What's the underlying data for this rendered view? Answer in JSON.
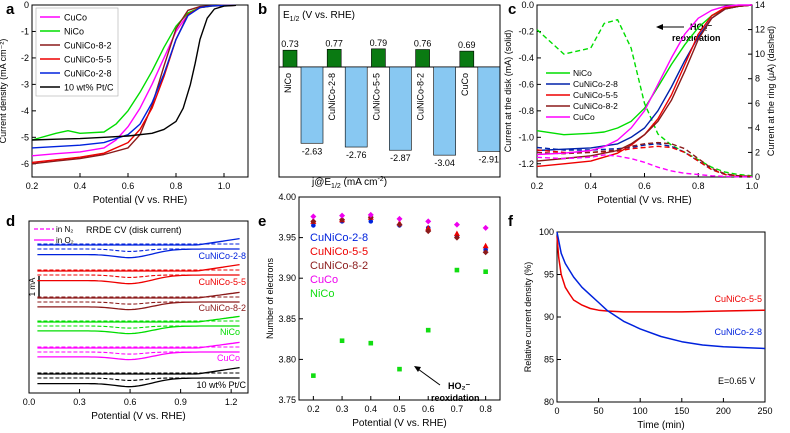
{
  "chart_data": [
    {
      "panel": "a",
      "type": "line",
      "xlabel": "Potential (V vs. RHE)",
      "ylabel": "Current density (mA cm⁻²)",
      "xlim": [
        0.2,
        1.1
      ],
      "ylim": [
        -6.5,
        0
      ],
      "xticks": [
        0.2,
        0.4,
        0.6,
        0.8,
        1.0
      ],
      "yticks": [
        -6,
        -5,
        -4,
        -3,
        -2,
        -1,
        0
      ],
      "legend_position": "top-left",
      "series": [
        {
          "name": "CuCo",
          "color": "#ff00ff",
          "x": [
            0.2,
            0.3,
            0.4,
            0.5,
            0.55,
            0.6,
            0.65,
            0.7,
            0.75,
            0.8,
            0.85,
            0.9,
            0.95,
            1.0,
            1.05
          ],
          "y": [
            -5.7,
            -5.62,
            -5.55,
            -5.4,
            -5.1,
            -4.6,
            -3.9,
            -3.0,
            -2.0,
            -1.0,
            -0.35,
            -0.1,
            -0.04,
            -0.02,
            -0.01
          ]
        },
        {
          "name": "NiCo",
          "color": "#00dd00",
          "x": [
            0.2,
            0.3,
            0.35,
            0.4,
            0.5,
            0.55,
            0.6,
            0.65,
            0.7,
            0.75,
            0.8,
            0.85,
            0.9,
            0.95,
            1.0,
            1.05
          ],
          "y": [
            -5.1,
            -4.85,
            -4.75,
            -4.85,
            -4.8,
            -4.5,
            -4.0,
            -3.3,
            -2.5,
            -1.6,
            -0.8,
            -0.3,
            -0.1,
            -0.04,
            -0.02,
            -0.01
          ]
        },
        {
          "name": "CuNiCo-8-2",
          "color": "#8b1a1a",
          "x": [
            0.2,
            0.3,
            0.4,
            0.5,
            0.6,
            0.65,
            0.7,
            0.75,
            0.8,
            0.85,
            0.9,
            0.95,
            1.0,
            1.05
          ],
          "y": [
            -6.0,
            -5.9,
            -5.8,
            -5.65,
            -5.4,
            -4.9,
            -3.8,
            -2.3,
            -0.9,
            -0.2,
            -0.06,
            -0.03,
            -0.02,
            -0.01
          ]
        },
        {
          "name": "CuNiCo-5-5",
          "color": "#ee0000",
          "x": [
            0.2,
            0.3,
            0.4,
            0.5,
            0.6,
            0.65,
            0.7,
            0.75,
            0.8,
            0.85,
            0.9,
            0.95,
            1.0,
            1.05
          ],
          "y": [
            -5.95,
            -5.85,
            -5.75,
            -5.6,
            -5.2,
            -4.7,
            -3.9,
            -2.7,
            -1.3,
            -0.35,
            -0.1,
            -0.03,
            -0.02,
            -0.01
          ]
        },
        {
          "name": "CuNiCo-2-8",
          "color": "#0022dd",
          "x": [
            0.2,
            0.3,
            0.4,
            0.5,
            0.6,
            0.65,
            0.7,
            0.75,
            0.8,
            0.85,
            0.9,
            0.95,
            1.0,
            1.05
          ],
          "y": [
            -5.4,
            -5.35,
            -5.3,
            -5.2,
            -4.9,
            -4.5,
            -3.7,
            -2.6,
            -1.3,
            -0.4,
            -0.1,
            -0.03,
            -0.02,
            -0.01
          ]
        },
        {
          "name": "10 wt% Pt/C",
          "color": "#000000",
          "x": [
            0.2,
            0.3,
            0.4,
            0.5,
            0.6,
            0.7,
            0.75,
            0.8,
            0.83,
            0.86,
            0.88,
            0.9,
            0.93,
            0.96,
            1.0,
            1.05
          ],
          "y": [
            -5.1,
            -5.07,
            -5.05,
            -5.0,
            -4.95,
            -4.85,
            -4.7,
            -4.4,
            -3.9,
            -3.0,
            -2.2,
            -1.3,
            -0.5,
            -0.15,
            -0.04,
            -0.01
          ]
        }
      ]
    },
    {
      "panel": "b",
      "type": "bar",
      "title": "E1/2 (V vs. RHE)",
      "xlabel": "j@E1/2 (mA cm⁻²)",
      "categories": [
        "NiCo",
        "CuNiCo-2-8",
        "CuNiCo-5-5",
        "CuNiCo-8-2",
        "CuCo"
      ],
      "series": [
        {
          "name": "E1/2",
          "color": "#0a7a12",
          "values": [
            0.73,
            0.77,
            0.79,
            0.76,
            0.69
          ]
        },
        {
          "name": "j@E1/2",
          "color": "#88c8f2",
          "values": [
            -2.63,
            -2.76,
            -2.87,
            -3.04,
            -2.91
          ]
        }
      ],
      "e_labels": [
        "0.73",
        "0.77",
        "0.79",
        "0.76",
        "0.69"
      ],
      "j_labels": [
        "-2.63",
        "-2.76",
        "-2.87",
        "-3.04",
        "-2.91"
      ]
    },
    {
      "panel": "c",
      "type": "line",
      "xlabel": "Potential (V vs. RHE)",
      "ylabel": "Current at the disk (mA) (solid)",
      "ylabel2": "Current at the ring (μA) (dashed)",
      "xlim": [
        0.2,
        1.0
      ],
      "ylim": [
        -1.3,
        0
      ],
      "ylim2": [
        0,
        14
      ],
      "xticks": [
        0.2,
        0.4,
        0.6,
        0.8,
        1.0
      ],
      "yticks": [
        -1.2,
        -1.0,
        -0.8,
        -0.6,
        -0.4,
        -0.2,
        0.0
      ],
      "yticks2": [
        0,
        2,
        4,
        6,
        8,
        10,
        12,
        14
      ],
      "annotation": "HO₂⁻ reoxidation",
      "legend_position": "middle-left",
      "series": [
        {
          "name": "NiCo",
          "color": "#00dd00",
          "x": [
            0.2,
            0.3,
            0.4,
            0.45,
            0.5,
            0.55,
            0.6,
            0.65,
            0.7,
            0.75,
            0.8,
            0.85,
            0.9,
            0.95,
            1.0
          ],
          "disk": [
            -0.95,
            -0.98,
            -0.97,
            -0.96,
            -0.93,
            -0.88,
            -0.78,
            -0.62,
            -0.45,
            -0.3,
            -0.17,
            -0.08,
            -0.03,
            -0.01,
            0.0
          ],
          "ring": [
            12.0,
            10.0,
            10.5,
            12.5,
            12.8,
            10.5,
            6.0,
            3.5,
            2.6,
            2.0,
            1.4,
            0.8,
            0.4,
            0.2,
            0.1
          ]
        },
        {
          "name": "CuNiCo-2-8",
          "color": "#0022aa",
          "x": [
            0.2,
            0.3,
            0.4,
            0.5,
            0.55,
            0.6,
            0.65,
            0.7,
            0.75,
            0.8,
            0.85,
            0.9,
            0.95,
            1.0
          ],
          "disk": [
            -1.1,
            -1.09,
            -1.08,
            -1.05,
            -1.0,
            -0.93,
            -0.8,
            -0.62,
            -0.42,
            -0.24,
            -0.1,
            -0.03,
            -0.01,
            0.0
          ],
          "ring": [
            2.4,
            2.2,
            2.2,
            2.3,
            2.4,
            2.6,
            2.7,
            2.5,
            2.0,
            1.3,
            0.6,
            0.2,
            0.1,
            0.05
          ]
        },
        {
          "name": "CuNiCo-5-5",
          "color": "#ee0000",
          "x": [
            0.2,
            0.3,
            0.4,
            0.5,
            0.55,
            0.6,
            0.65,
            0.7,
            0.75,
            0.8,
            0.85,
            0.9,
            0.95,
            1.0
          ],
          "disk": [
            -1.22,
            -1.2,
            -1.18,
            -1.12,
            -1.06,
            -0.98,
            -0.86,
            -0.68,
            -0.45,
            -0.22,
            -0.08,
            -0.02,
            -0.01,
            0.0
          ],
          "ring": [
            2.2,
            2.0,
            2.0,
            2.1,
            2.3,
            2.4,
            2.5,
            2.4,
            2.0,
            1.3,
            0.6,
            0.2,
            0.1,
            0.05
          ]
        },
        {
          "name": "CuNiCo-8-2",
          "color": "#8b1a1a",
          "x": [
            0.2,
            0.3,
            0.4,
            0.5,
            0.55,
            0.6,
            0.65,
            0.7,
            0.75,
            0.8,
            0.85,
            0.9,
            0.95,
            1.0
          ],
          "disk": [
            -1.18,
            -1.16,
            -1.14,
            -1.1,
            -1.05,
            -0.98,
            -0.88,
            -0.72,
            -0.5,
            -0.26,
            -0.1,
            -0.03,
            -0.01,
            0.0
          ],
          "ring": [
            2.0,
            1.9,
            2.0,
            2.2,
            2.5,
            2.7,
            2.8,
            2.7,
            2.3,
            1.5,
            0.7,
            0.25,
            0.1,
            0.05
          ]
        },
        {
          "name": "CuCo",
          "color": "#ff00ff",
          "x": [
            0.2,
            0.3,
            0.4,
            0.45,
            0.5,
            0.55,
            0.6,
            0.65,
            0.7,
            0.75,
            0.8,
            0.85,
            0.9,
            0.95,
            1.0
          ],
          "disk": [
            -1.13,
            -1.12,
            -1.1,
            -1.07,
            -1.02,
            -0.93,
            -0.8,
            -0.6,
            -0.4,
            -0.22,
            -0.1,
            -0.04,
            -0.01,
            0.0,
            0.0
          ],
          "ring": [
            1.6,
            1.5,
            1.6,
            1.8,
            1.7,
            1.5,
            1.2,
            0.8,
            0.5,
            0.3,
            0.2,
            0.1,
            0.05,
            0.02,
            0.01
          ]
        }
      ]
    },
    {
      "panel": "d",
      "type": "line",
      "title": "RRDE CV (disk current)",
      "xlabel": "Potential (V vs. RHE)",
      "xlim": [
        0.0,
        1.3
      ],
      "xticks": [
        0.0,
        0.3,
        0.6,
        0.9,
        1.2
      ],
      "scale_bar": "1 mA",
      "legend": [
        "in N₂",
        "in O₂"
      ],
      "series": [
        {
          "name": "CuNiCo-2-8",
          "color": "#0022dd"
        },
        {
          "name": "CuNiCo-5-5",
          "color": "#ee0000"
        },
        {
          "name": "CuNiCo-8-2",
          "color": "#8b1a1a"
        },
        {
          "name": "NiCo",
          "color": "#00dd00"
        },
        {
          "name": "CuCo",
          "color": "#ff00ff"
        },
        {
          "name": "10 wt% Pt/C",
          "color": "#000000"
        }
      ]
    },
    {
      "panel": "e",
      "type": "scatter",
      "xlabel": "Potential (V vs. RHE)",
      "ylabel": "Number of electrons",
      "xlim": [
        0.15,
        0.85
      ],
      "ylim": [
        3.75,
        4.0
      ],
      "xticks": [
        0.2,
        0.3,
        0.4,
        0.5,
        0.6,
        0.7,
        0.8
      ],
      "yticks": [
        3.75,
        3.8,
        3.85,
        3.9,
        3.95,
        4.0
      ],
      "annotation": "HO₂⁻ reoxidation",
      "series": [
        {
          "name": "CuNiCo-2-8",
          "color": "#0022dd",
          "marker": "circle",
          "x": [
            0.2,
            0.3,
            0.4,
            0.5,
            0.6,
            0.7,
            0.8
          ],
          "y": [
            3.965,
            3.97,
            3.97,
            3.965,
            3.962,
            3.952,
            3.935
          ]
        },
        {
          "name": "CuNiCo-5-5",
          "color": "#ee0000",
          "marker": "triangle",
          "x": [
            0.2,
            0.3,
            0.4,
            0.5,
            0.6,
            0.7,
            0.8
          ],
          "y": [
            3.97,
            3.972,
            3.975,
            3.968,
            3.962,
            3.955,
            3.94
          ]
        },
        {
          "name": "CuNiCo-8-2",
          "color": "#8b1a1a",
          "marker": "diamond",
          "x": [
            0.2,
            0.3,
            0.4,
            0.5,
            0.6,
            0.7,
            0.8
          ],
          "y": [
            3.97,
            3.972,
            3.975,
            3.966,
            3.958,
            3.95,
            3.932
          ]
        },
        {
          "name": "CuCo",
          "color": "#ee00ee",
          "marker": "diamond",
          "x": [
            0.2,
            0.3,
            0.4,
            0.5,
            0.6,
            0.7,
            0.8
          ],
          "y": [
            3.976,
            3.977,
            3.978,
            3.973,
            3.97,
            3.966,
            3.962
          ]
        },
        {
          "name": "NiCo",
          "color": "#11dd11",
          "marker": "square",
          "x": [
            0.2,
            0.3,
            0.4,
            0.5,
            0.6,
            0.7,
            0.8
          ],
          "y": [
            3.78,
            3.823,
            3.82,
            3.788,
            3.836,
            3.91,
            3.908
          ]
        }
      ]
    },
    {
      "panel": "f",
      "type": "line",
      "xlabel": "Time (min)",
      "ylabel": "Relative current density (%)",
      "xlim": [
        0,
        250
      ],
      "ylim": [
        80,
        100
      ],
      "xticks": [
        0,
        50,
        100,
        150,
        200,
        250
      ],
      "yticks": [
        80,
        85,
        90,
        95,
        100
      ],
      "annotation": "E=0.65 V",
      "series": [
        {
          "name": "CuNiCo-5-5",
          "color": "#ee0000",
          "x": [
            0,
            2,
            5,
            10,
            15,
            20,
            30,
            40,
            50,
            60,
            80,
            100,
            150,
            200,
            250
          ],
          "y": [
            99.5,
            97.0,
            95.0,
            93.5,
            92.7,
            92.0,
            91.4,
            91.0,
            90.8,
            90.7,
            90.6,
            90.6,
            90.6,
            90.7,
            90.8
          ]
        },
        {
          "name": "CuNiCo-2-8",
          "color": "#0022dd",
          "x": [
            0,
            5,
            10,
            20,
            30,
            40,
            50,
            60,
            80,
            100,
            125,
            150,
            175,
            200,
            225,
            250
          ],
          "y": [
            100.0,
            97.5,
            96.3,
            94.7,
            93.5,
            92.6,
            91.7,
            90.8,
            89.5,
            88.6,
            87.7,
            87.1,
            86.7,
            86.5,
            86.4,
            86.3
          ]
        }
      ]
    }
  ],
  "panel_labels": [
    "a",
    "b",
    "c",
    "d",
    "e",
    "f"
  ],
  "annotations": {
    "c_ring_label": "HO₂⁻",
    "c_ring_label2": "reoxidation",
    "e_ring_label": "HO₂⁻",
    "e_ring_label2": "reoxidation",
    "b_title": "E",
    "b_title_sub": "1/2",
    "b_title_rest": " (V vs. RHE)",
    "b_xlabel_pre": "j@E",
    "b_xlabel_sub": "1/2",
    "b_xlabel_rest": " (mA cm",
    "b_xlabel_sup": "-2",
    "b_xlabel_end": ")",
    "d_title": "RRDE CV (disk current)",
    "d_legend_n2": "in N₂",
    "d_legend_o2": "in O₂",
    "d_scale": "1 mA",
    "f_condition": "E=0.65 V"
  },
  "colors": {
    "green_bar": "#0a7a12",
    "blue_bar": "#88c8f2",
    "axis": "#000000"
  }
}
